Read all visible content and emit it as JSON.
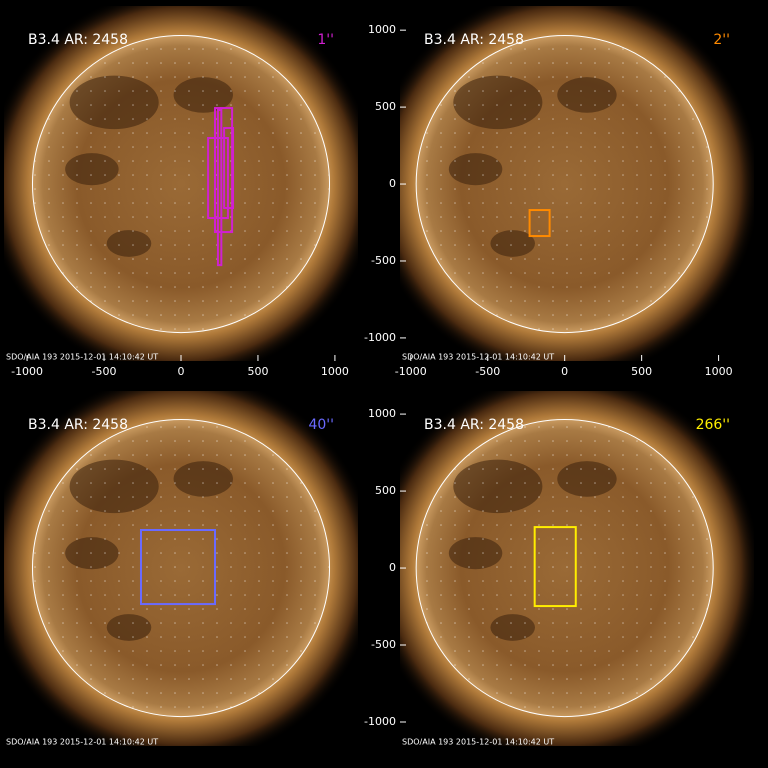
{
  "chart_data": [
    {
      "type": "solar-image",
      "title": "B3.4 AR: 2458",
      "label": "1''",
      "label_color": "#d020d0",
      "footer": "SDO/AIA 193 2015-12-01 14:10:42 UT",
      "xlim": [
        -1150,
        1150
      ],
      "ylim": [
        -1150,
        1157
      ],
      "xticks": [
        -1000,
        -500,
        0,
        500,
        1000
      ],
      "boxes": [
        {
          "x": [
            176,
            305
          ],
          "y": [
            -221,
            299
          ],
          "color": "#d020d0"
        },
        {
          "x": [
            221,
            332
          ],
          "y": [
            -312,
            494
          ],
          "color": "#d020d0"
        },
        {
          "x": [
            280,
            338
          ],
          "y": [
            -156,
            364
          ],
          "color": "#d020d0"
        },
        {
          "x": [
            240,
            262
          ],
          "y": [
            -527,
            481
          ],
          "color": "#d020d0"
        }
      ]
    },
    {
      "type": "solar-image",
      "title": "B3.4 AR: 2458",
      "label": "2''",
      "label_color": "#ff8a00",
      "footer": "SDO/AIA 193 2015-12-01 14:10:42 UT",
      "xlim": [
        -1070,
        1230
      ],
      "ylim": [
        -1150,
        1157
      ],
      "xticks": [
        -1000,
        -500,
        0,
        500,
        1000
      ],
      "yticks": [
        1000,
        500,
        0,
        -500,
        -1000
      ],
      "boxes": [
        {
          "x": [
            -228,
            -98
          ],
          "y": [
            -338,
            -169
          ],
          "color": "#ff8a00"
        }
      ]
    },
    {
      "type": "solar-image",
      "title": "B3.4 AR: 2458",
      "label": "40''",
      "label_color": "#6a6aff",
      "footer": "SDO/AIA 193 2015-12-01 14:10:42 UT",
      "xlim": [
        -1150,
        1150
      ],
      "ylim": [
        -1156,
        1150
      ],
      "boxes": [
        {
          "x": [
            -260,
            221
          ],
          "y": [
            -234,
            247
          ],
          "color": "#6a6aff"
        }
      ]
    },
    {
      "type": "solar-image",
      "title": "B3.4 AR: 2458",
      "label": "266''",
      "label_color": "#ffee00",
      "footer": "SDO/AIA 193 2015-12-01 14:10:42 UT",
      "xlim": [
        -1070,
        1230
      ],
      "ylim": [
        -1156,
        1150
      ],
      "yticks": [
        1000,
        500,
        0,
        -500,
        -1000
      ],
      "boxes": [
        {
          "x": [
            -195,
            72
          ],
          "y": [
            -247,
            266
          ],
          "color": "#ffee00"
        }
      ]
    }
  ]
}
